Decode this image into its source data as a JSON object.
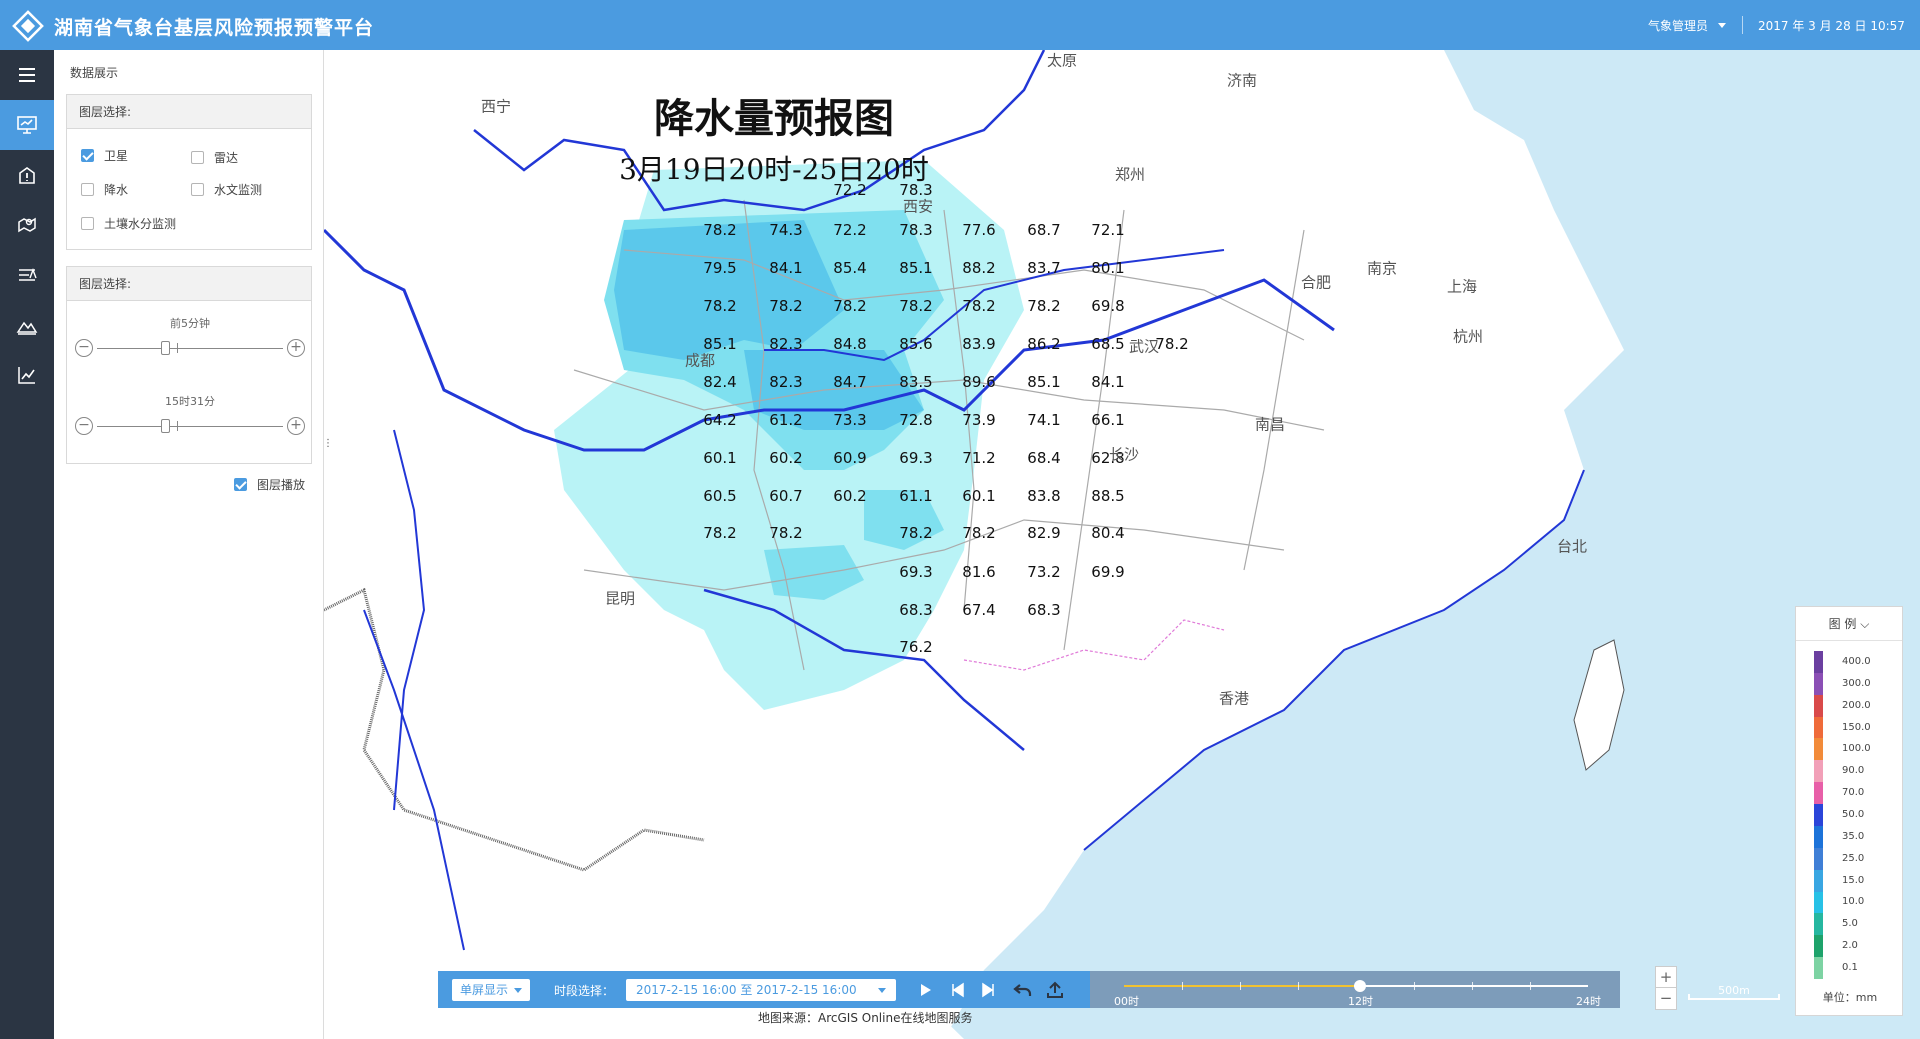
{
  "header": {
    "title": "湖南省气象台基层风险预报预警平台",
    "user": "气象管理员",
    "date": "2017 年 3 月 28 日 10:57",
    "brand_color": "#4b9be0"
  },
  "rail": {
    "items": [
      "menu-icon",
      "monitor-icon",
      "warning-house-icon",
      "map-pin-icon",
      "level-icon",
      "mountain-icon",
      "line-chart-icon"
    ],
    "active_index": 1
  },
  "panel": {
    "title": "数据展示",
    "layer_group": {
      "heading": "图层选择:",
      "options": [
        {
          "label": "卫星",
          "checked": true
        },
        {
          "label": "雷达",
          "checked": false
        },
        {
          "label": "降水",
          "checked": false
        },
        {
          "label": "水文监测",
          "checked": false
        },
        {
          "label": "土壤水分监测",
          "checked": false
        }
      ]
    },
    "time_group": {
      "heading": "图层选择:",
      "slider1_label": "前5分钟",
      "slider2_label": "15时31分"
    },
    "playback": {
      "label": "图层播放",
      "checked": true
    }
  },
  "map": {
    "title": "降水量预报图",
    "subtitle": "3月19日20时-25日20时",
    "values": [
      {
        "t": "72.2"
      },
      {
        "t": "78.3"
      },
      {
        "t": "78.2"
      },
      {
        "t": "74.3"
      },
      {
        "t": "72.2"
      },
      {
        "t": "78.3"
      },
      {
        "t": "77.6"
      },
      {
        "t": "68.7"
      },
      {
        "t": "72.1"
      },
      {
        "t": "79.5"
      },
      {
        "t": "84.1"
      },
      {
        "t": "85.4"
      },
      {
        "t": "85.1"
      },
      {
        "t": "88.2"
      },
      {
        "t": "83.7"
      },
      {
        "t": "80.1"
      },
      {
        "t": "78.2"
      },
      {
        "t": "78.2"
      },
      {
        "t": "78.2"
      },
      {
        "t": "78.2"
      },
      {
        "t": "78.2"
      },
      {
        "t": "78.2"
      },
      {
        "t": "69.8"
      },
      {
        "t": "85.1"
      },
      {
        "t": "82.3"
      },
      {
        "t": "84.8"
      },
      {
        "t": "85.6"
      },
      {
        "t": "83.9"
      },
      {
        "t": "86.2"
      },
      {
        "t": "68.5"
      },
      {
        "t": "78.2"
      },
      {
        "t": "82.4"
      },
      {
        "t": "82.3"
      },
      {
        "t": "84.7"
      },
      {
        "t": "83.5"
      },
      {
        "t": "89.6"
      },
      {
        "t": "85.1"
      },
      {
        "t": "84.1"
      },
      {
        "t": "64.2"
      },
      {
        "t": "61.2"
      },
      {
        "t": "73.3"
      },
      {
        "t": "72.8"
      },
      {
        "t": "73.9"
      },
      {
        "t": "74.1"
      },
      {
        "t": "66.1"
      },
      {
        "t": "60.1"
      },
      {
        "t": "60.2"
      },
      {
        "t": "60.9"
      },
      {
        "t": "69.3"
      },
      {
        "t": "71.2"
      },
      {
        "t": "68.4"
      },
      {
        "t": "62.8"
      },
      {
        "t": "60.5"
      },
      {
        "t": "60.7"
      },
      {
        "t": "60.2"
      },
      {
        "t": "61.1"
      },
      {
        "t": "60.1"
      },
      {
        "t": "83.8"
      },
      {
        "t": "88.5"
      },
      {
        "t": "78.2"
      },
      {
        "t": "78.2"
      },
      {
        "t": "78.2"
      },
      {
        "t": "78.2"
      },
      {
        "t": "82.9"
      },
      {
        "t": "80.4"
      },
      {
        "t": "69.3"
      },
      {
        "t": "81.6"
      },
      {
        "t": "73.2"
      },
      {
        "t": "69.9"
      },
      {
        "t": "68.3"
      },
      {
        "t": "67.4"
      },
      {
        "t": "68.3"
      },
      {
        "t": "76.2"
      }
    ],
    "cities": [
      "西宁",
      "西安",
      "郑州",
      "济南",
      "合肥",
      "南京",
      "上海",
      "杭州",
      "成都",
      "长沙",
      "南昌",
      "昆明",
      "台北",
      "香港",
      "太原",
      "武汉"
    ],
    "colors": {
      "sea": "#cde9f6",
      "land": "#ffffff",
      "rain_light": "#b9f3f6",
      "rain_mid": "#7fe0ef",
      "rain_heavy": "#5bc8eb",
      "river": "#2237d6"
    }
  },
  "controls": {
    "display_mode": "单屏显示",
    "period_label": "时段选择：",
    "period_value": "2017-2-15 16:00 至 2017-2-15 16:00",
    "timeline_labels": [
      "00时",
      "12时",
      "24时"
    ],
    "timeline_progress": 0.5,
    "source": "地图来源：ArcGIS Online在线地图服务"
  },
  "scale": {
    "label": "500m"
  },
  "legend": {
    "heading": "图 例",
    "labels": [
      "400.0",
      "300.0",
      "200.0",
      "150.0",
      "100.0",
      "90.0",
      "70.0",
      "50.0",
      "35.0",
      "25.0",
      "15.0",
      "10.0",
      "5.0",
      "2.0",
      "0.1"
    ],
    "unit": "单位：mm",
    "colors": [
      "#6b3fa0",
      "#8b4fb5",
      "#d94a4a",
      "#ef6b3a",
      "#f28b3a",
      "#f2a0b8",
      "#e85fa8",
      "#2b45d9",
      "#1d73d9",
      "#3f7fd6",
      "#39a6e2",
      "#27c1e6",
      "#26b7a0",
      "#1ea36b",
      "#7dd3a3"
    ]
  }
}
